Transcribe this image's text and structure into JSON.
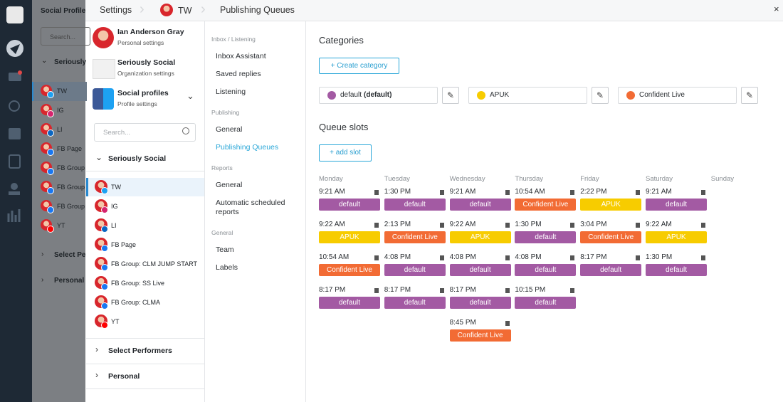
{
  "background": {
    "header": "Social Profile",
    "search": "Search...",
    "group": "Seriously",
    "profiles": [
      "TW",
      "IG",
      "LI",
      "FB Page",
      "FB Group",
      "FB Group",
      "FB Group",
      "YT"
    ],
    "sections": [
      "Select Pe",
      "Personal"
    ]
  },
  "breadcrumb": {
    "root": "Settings",
    "profile": "TW",
    "page": "Publishing Queues"
  },
  "close": "×",
  "accounts": [
    {
      "name": "Ian Anderson Gray",
      "subtitle": "Personal settings"
    },
    {
      "name": "Seriously Social",
      "subtitle": "Organization settings"
    },
    {
      "name": "Social profiles",
      "subtitle": "Profile settings"
    }
  ],
  "search_placeholder": "Search...",
  "profile_group": "Seriously Social",
  "profiles": [
    "TW",
    "IG",
    "LI",
    "FB Page",
    "FB Group: CLM JUMP START",
    "FB Group: SS Live",
    "FB Group: CLMA",
    "YT"
  ],
  "other_groups": [
    "Select Performers",
    "Personal"
  ],
  "menu": [
    {
      "heading": "Inbox / Listening",
      "items": [
        "Inbox Assistant",
        "Saved replies",
        "Listening"
      ]
    },
    {
      "heading": "Publishing",
      "items": [
        "General",
        "Publishing Queues"
      ]
    },
    {
      "heading": "Reports",
      "items": [
        "General",
        "Automatic scheduled reports"
      ]
    },
    {
      "heading": "General",
      "items": [
        "Team",
        "Labels"
      ]
    }
  ],
  "categories": {
    "title": "Categories",
    "create": "+ Create category",
    "items": [
      {
        "name": "default",
        "tag": "(default)",
        "color": "#a35aa3"
      },
      {
        "name": "APUK",
        "color": "#f7cc00"
      },
      {
        "name": "Confident Live",
        "color": "#f26b34"
      }
    ]
  },
  "queue": {
    "title": "Queue slots",
    "add": "+ add slot",
    "days": [
      {
        "name": "Monday",
        "slots": [
          {
            "time": "9:21 AM",
            "category": "default"
          },
          {
            "time": "9:22 AM",
            "category": "APUK"
          },
          {
            "time": "10:54 AM",
            "category": "Confident Live"
          },
          {
            "time": "8:17 PM",
            "category": "default"
          }
        ]
      },
      {
        "name": "Tuesday",
        "slots": [
          {
            "time": "1:30 PM",
            "category": "default"
          },
          {
            "time": "2:13 PM",
            "category": "Confident Live"
          },
          {
            "time": "4:08 PM",
            "category": "default"
          },
          {
            "time": "8:17 PM",
            "category": "default"
          }
        ]
      },
      {
        "name": "Wednesday",
        "slots": [
          {
            "time": "9:21 AM",
            "category": "default"
          },
          {
            "time": "9:22 AM",
            "category": "APUK"
          },
          {
            "time": "4:08 PM",
            "category": "default"
          },
          {
            "time": "8:17 PM",
            "category": "default"
          },
          {
            "time": "8:45 PM",
            "category": "Confident Live"
          }
        ]
      },
      {
        "name": "Thursday",
        "slots": [
          {
            "time": "10:54 AM",
            "category": "Confident Live"
          },
          {
            "time": "1:30 PM",
            "category": "default"
          },
          {
            "time": "4:08 PM",
            "category": "default"
          },
          {
            "time": "10:15 PM",
            "category": "default"
          }
        ]
      },
      {
        "name": "Friday",
        "slots": [
          {
            "time": "2:22 PM",
            "category": "APUK"
          },
          {
            "time": "3:04 PM",
            "category": "Confident Live"
          },
          {
            "time": "8:17 PM",
            "category": "default"
          }
        ]
      },
      {
        "name": "Saturday",
        "slots": [
          {
            "time": "9:21 AM",
            "category": "default"
          },
          {
            "time": "9:22 AM",
            "category": "APUK"
          },
          {
            "time": "1:30 PM",
            "category": "default"
          }
        ]
      },
      {
        "name": "Sunday",
        "slots": []
      }
    ]
  }
}
